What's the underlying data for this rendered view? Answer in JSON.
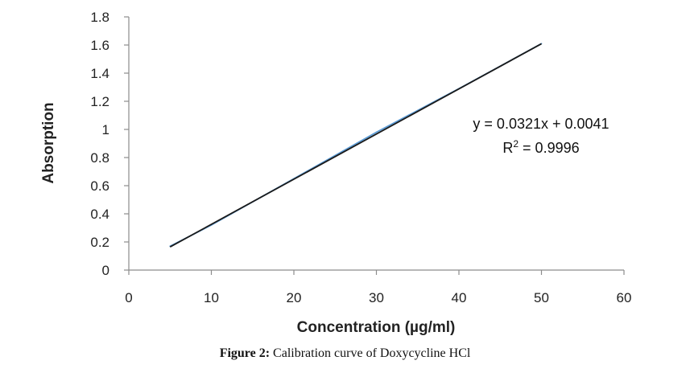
{
  "chart_data": {
    "type": "scatter",
    "xlabel": "Concentration (µg/ml)",
    "ylabel": "Absorption",
    "xlim": [
      0,
      60
    ],
    "ylim": [
      0,
      1.8
    ],
    "x_ticks": [
      0,
      10,
      20,
      30,
      40,
      50,
      60
    ],
    "y_ticks": [
      0,
      0.2,
      0.4,
      0.6,
      0.8,
      1,
      1.2,
      1.4,
      1.6,
      1.8
    ],
    "y_tick_labels": [
      "0",
      "0.2",
      "0.4",
      "0.6",
      "0.8",
      "1",
      "1.2",
      "1.4",
      "1.6",
      "1.8"
    ],
    "grid": false,
    "series": [
      {
        "x": [
          5,
          10,
          20,
          30,
          40,
          50
        ],
        "y": [
          0.17,
          0.32,
          0.65,
          0.98,
          1.29,
          1.61
        ],
        "color": "#5b9bd5"
      }
    ],
    "trendline": {
      "slope": 0.0321,
      "intercept": 0.0041,
      "x_range": [
        5,
        50
      ],
      "color": "#1a1a1a"
    },
    "annotations": {
      "equation": "y = 0.0321x + 0.0041",
      "r_squared_prefix": "R",
      "r_squared_sup": "2",
      "r_squared_value": " = 0.9996"
    }
  },
  "caption": {
    "label": "Figure 2:",
    "text": " Calibration curve of Doxycycline HCl"
  }
}
